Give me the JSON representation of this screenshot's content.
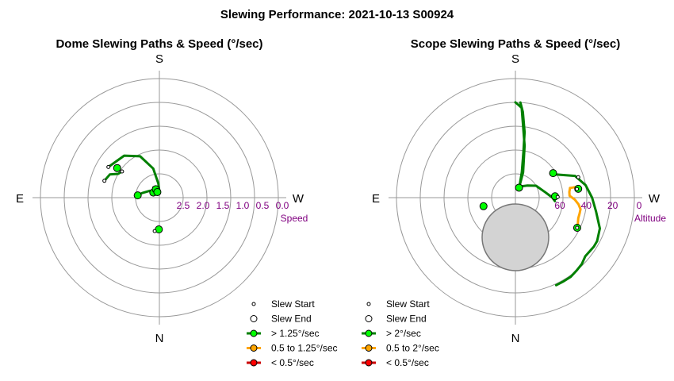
{
  "figure": {
    "title": "Slewing Performance: 2021-10-13 S00924"
  },
  "colors": {
    "fast": "#008000",
    "medium": "#ffa500",
    "slow": "#cc0000",
    "fast_fill": "#00ff00",
    "medium_fill": "#ffa500",
    "slow_fill": "#ff0000",
    "ring": "#999999",
    "keepout_fill": "#d3d3d3"
  },
  "chart_data": [
    {
      "type": "polar-path",
      "title": "Dome Slewing Paths & Speed (°/sec)",
      "directions": {
        "top": "S",
        "left": "E",
        "right": "W",
        "bottom": "N"
      },
      "radial_axis": {
        "label": "Speed",
        "min": 0.0,
        "max": 3.0,
        "tick_labels": [
          "2.5",
          "2.0",
          "1.5",
          "1.0",
          "0.5",
          "0.0"
        ]
      },
      "legend": [
        {
          "kind": "start",
          "label": "Slew Start"
        },
        {
          "kind": "end",
          "label": "Slew End"
        },
        {
          "kind": "fast",
          "label": "> 1.25°/sec"
        },
        {
          "kind": "medium",
          "label": "0.5 to 1.25°/sec"
        },
        {
          "kind": "slow",
          "label": "< 0.5°/sec"
        }
      ],
      "paths": [
        {
          "speed": "fast",
          "points": [
            [
              -8,
              2.15
            ],
            [
              -4,
              2.2
            ],
            [
              -1,
              2.2
            ]
          ]
        },
        {
          "speed": "fast",
          "points": [
            [
              -121,
              1.5
            ],
            [
              -140,
              1.62
            ],
            [
              -155,
              1.85
            ],
            [
              -168,
              2.25
            ],
            [
              -176,
              2.65
            ],
            [
              -180,
              2.85
            ],
            [
              -175,
              2.88
            ],
            [
              -165,
              2.75
            ],
            [
              -150,
              2.7
            ],
            [
              -140,
              2.75
            ],
            [
              -130,
              2.8
            ]
          ]
        },
        {
          "speed": "fast",
          "points": [
            [
              -107,
              1.55
            ],
            [
              -110,
              1.58
            ],
            [
              -115,
              1.62
            ],
            [
              -120,
              1.8
            ],
            [
              -125,
              1.85
            ]
          ]
        },
        {
          "speed": "fast",
          "points": [
            [
              -160,
              2.85
            ],
            [
              -125,
              2.7
            ],
            [
              -105,
              2.55
            ],
            [
              -96,
              2.45
            ]
          ]
        }
      ],
      "starts": [
        [
          -8,
          2.15
        ],
        [
          -121,
          1.5
        ],
        [
          -107,
          1.55
        ],
        [
          -125,
          1.85
        ]
      ],
      "ends": [
        [
          -1,
          2.2
        ],
        [
          -130,
          2.8
        ],
        [
          -96,
          2.45
        ],
        [
          -125,
          1.7
        ],
        [
          -157,
          2.77
        ],
        [
          -160,
          2.85
        ]
      ]
    },
    {
      "type": "polar-path",
      "title": "Scope Slewing Paths & Speed (°/sec)",
      "directions": {
        "top": "S",
        "left": "E",
        "right": "W",
        "bottom": "N"
      },
      "radial_axis": {
        "label": "Altitude",
        "min": 0,
        "max": 90,
        "tick_labels": [
          "60",
          "40",
          "20",
          "0"
        ],
        "tick_values": [
          60,
          40,
          20,
          0
        ]
      },
      "legend": [
        {
          "kind": "start",
          "label": "Slew Start"
        },
        {
          "kind": "end",
          "label": "Slew End"
        },
        {
          "kind": "fast",
          "label": "> 2°/sec"
        },
        {
          "kind": "medium",
          "label": "0.5 to 2°/sec"
        },
        {
          "kind": "slow",
          "label": "< 0.5°/sec"
        }
      ],
      "keepout": {
        "center_az": 0,
        "center_alt": 68,
        "radius_deg": 18
      },
      "paths": [
        {
          "speed": "fast",
          "points": [
            [
              180,
              18
            ],
            [
              178,
              20
            ],
            [
              176,
              22
            ],
            [
              170,
              50
            ],
            [
              163,
              70
            ],
            [
              160,
              82
            ]
          ]
        },
        {
          "speed": "fast",
          "points": [
            [
              177,
              18
            ],
            [
              175,
              25
            ],
            [
              172,
              40
            ],
            [
              170,
              55
            ],
            [
              166,
              70
            ],
            [
              160,
              81
            ]
          ]
        },
        {
          "speed": "fast",
          "points": [
            [
              160,
              81
            ],
            [
              150,
              80
            ],
            [
              135,
              77
            ],
            [
              120,
              72
            ],
            [
              100,
              67
            ],
            [
              90,
              62
            ],
            [
              85,
              60
            ]
          ]
        },
        {
          "speed": "fast",
          "points": [
            [
              120,
              55
            ],
            [
              110,
              42
            ],
            [
              100,
              36
            ],
            [
              90,
              32
            ],
            [
              80,
              28
            ],
            [
              70,
              22
            ],
            [
              62,
              20
            ]
          ]
        },
        {
          "speed": "fast",
          "points": [
            [
              62,
              20
            ],
            [
              58,
              20
            ],
            [
              50,
              21
            ],
            [
              45,
              19
            ],
            [
              40,
              18
            ],
            [
              35,
              17
            ],
            [
              30,
              17
            ],
            [
              25,
              17
            ]
          ]
        },
        {
          "speed": "medium",
          "points": [
            [
              64,
              38
            ],
            [
              68,
              39
            ],
            [
              72,
              40
            ],
            [
              76,
              40
            ],
            [
              80,
              40
            ],
            [
              84,
              42
            ],
            [
              88,
              45
            ],
            [
              92,
              49
            ],
            [
              96,
              49
            ],
            [
              100,
              48
            ]
          ]
        },
        {
          "speed": "medium",
          "points": [
            [
              100,
              48
            ],
            [
              100,
              46
            ],
            [
              100,
              44
            ],
            [
              98,
              42
            ]
          ]
        }
      ],
      "starts": [
        [
          108,
          40
        ],
        [
          64,
          38
        ],
        [
          91,
          58
        ],
        [
          98,
          43
        ]
      ],
      "ends": [
        [
          -75,
          65
        ],
        [
          160,
          82
        ],
        [
          123,
          56
        ],
        [
          98,
          42
        ],
        [
          64,
          38
        ],
        [
          92,
          60
        ]
      ]
    }
  ]
}
